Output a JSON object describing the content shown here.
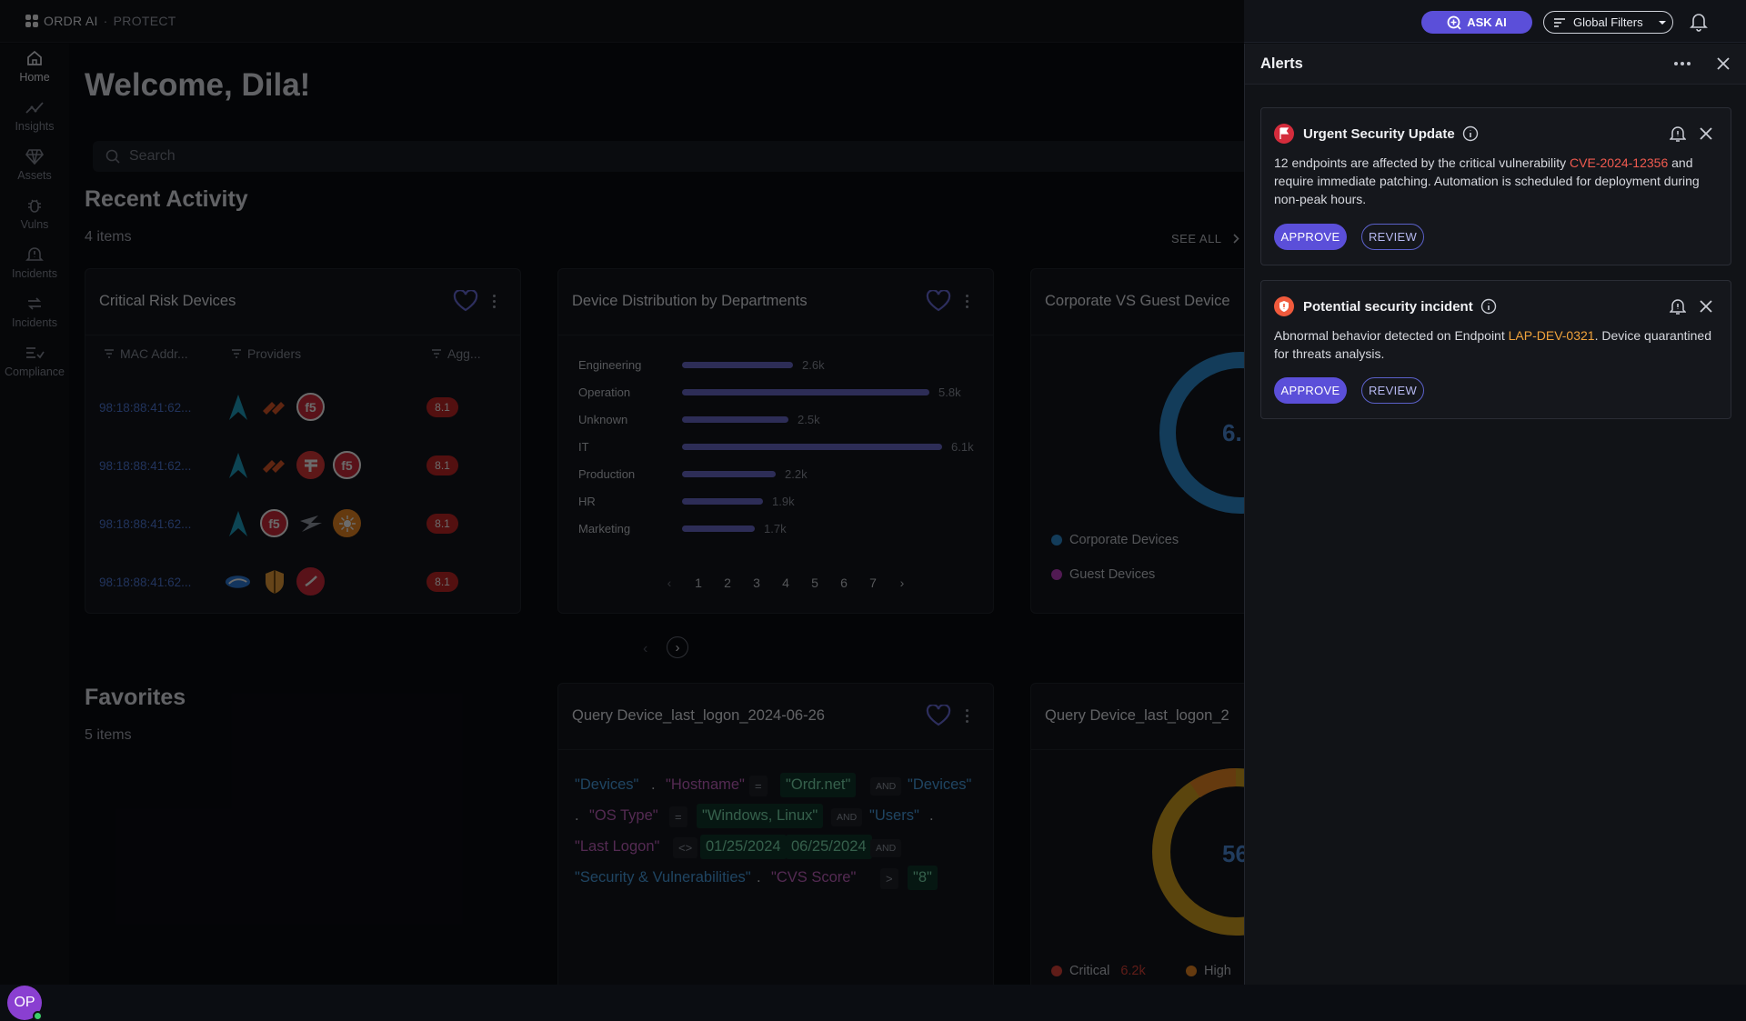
{
  "app": {
    "brand": "ORDR AI",
    "product": "PROTECT"
  },
  "topbar": {
    "ask_ai_label": "ASK AI",
    "global_filters_label": "Global Filters"
  },
  "sidebar": {
    "items": [
      {
        "label": "Home",
        "icon": "home-icon",
        "active": true
      },
      {
        "label": "Insights",
        "icon": "insights-icon"
      },
      {
        "label": "Assets",
        "icon": "diamond-icon"
      },
      {
        "label": "Vulns",
        "icon": "bug-icon"
      },
      {
        "label": "Incidents",
        "icon": "bell-icon"
      },
      {
        "label": "Incidents",
        "icon": "repeat-icon"
      },
      {
        "label": "Compliance",
        "icon": "checklist-icon"
      }
    ],
    "avatar_initials": "OP"
  },
  "main": {
    "welcome": "Welcome, Dila!",
    "search_placeholder": "Search",
    "recent": {
      "title": "Recent Activity",
      "count": "4 items",
      "see_all": "SEE ALL"
    },
    "favorites": {
      "title": "Favorites",
      "count": "5 items"
    }
  },
  "critical_card": {
    "title": "Critical Risk Devices",
    "headers": [
      "MAC Addr...",
      "Providers",
      "Agg..."
    ],
    "rows": [
      {
        "mac": "98:18:88:41:62...",
        "score": "8.1",
        "providers": [
          "sonarqube",
          "palo-alto",
          "f5"
        ]
      },
      {
        "mac": "98:18:88:41:62...",
        "score": "8.1",
        "providers": [
          "sonarqube",
          "palo-alto",
          "fortinet",
          "f5"
        ]
      },
      {
        "mac": "98:18:88:41:62...",
        "score": "8.1",
        "providers": [
          "sonarqube",
          "f5",
          "wiz",
          "sun"
        ]
      },
      {
        "mac": "98:18:88:41:62...",
        "score": "8.1",
        "providers": [
          "crowdstrike",
          "shield",
          "trend-micro"
        ]
      }
    ]
  },
  "dept_card": {
    "title": "Device Distribution by Departments",
    "pages": [
      "1",
      "2",
      "3",
      "4",
      "5",
      "6",
      "7"
    ]
  },
  "chart_data": {
    "type": "bar",
    "orientation": "horizontal",
    "categories": [
      "Engineering",
      "Operation",
      "Unknown",
      "IT",
      "Production",
      "HR",
      "Marketing"
    ],
    "values": [
      2.6,
      5.8,
      2.5,
      6.1,
      2.2,
      1.9,
      1.7
    ],
    "value_labels": [
      "2.6k",
      "5.8k",
      "2.5k",
      "6.1k",
      "2.2k",
      "1.9k",
      "1.7k"
    ],
    "color": "#6d6ccf"
  },
  "corp_card": {
    "title": "Corporate VS Guest Device",
    "center_value": "6.",
    "legend": [
      {
        "label": "Corporate Devices",
        "color": "#2f8fd6"
      },
      {
        "label": "Guest Devices",
        "color": "#c13fc7"
      }
    ]
  },
  "query_card1": {
    "title": "Query Device_last_logon_2024-06-26",
    "tokens": {
      "t1": "\"Devices\"",
      "t2": ".",
      "t3": "\"Hostname\"",
      "t4": "=",
      "t5": "\"Ordr.net\"",
      "t6": "AND",
      "t7": "\"Devices\"",
      "t8": ".",
      "t9": "\"OS Type\"",
      "t10": "=",
      "t11": "\"Windows, Linux\"",
      "t12": "AND",
      "t13": "\"Users\"",
      "t14": ".",
      "t15": "\"Last Logon\"",
      "t16": "<>",
      "t17": "01/25/2024",
      "t18": "06/25/2024",
      "t19": "AND",
      "t20": "\"Security & Vulnerabilities\"",
      "t21": ".",
      "t22": "\"CVS Score\"",
      "t23": ">",
      "t24": "\"8\""
    }
  },
  "query_card2": {
    "title": "Query Device_last_logon_2",
    "center_value": "56",
    "legend": [
      {
        "label": "Critical",
        "value": "6.2k",
        "color": "#e2443a"
      },
      {
        "label": "High",
        "color": "#f08a24"
      }
    ]
  },
  "alerts": {
    "title": "Alerts",
    "items": [
      {
        "title": "Urgent Security Update",
        "body_pre": "12 endpoints are affected by the critical vulnerability ",
        "highlight": "CVE-2024-12356",
        "body_post": " and require immediate patching. Automation is scheduled for deployment during non-peak hours.",
        "approve": "APPROVE",
        "review": "REVIEW",
        "icon": "flag-icon"
      },
      {
        "title": "Potential security incident",
        "body_pre": "Abnormal behavior detected on Endpoint ",
        "highlight": "LAP-DEV-0321",
        "body_post": ". Device quarantined for threats analysis.",
        "approve": "APPROVE",
        "review": "REVIEW",
        "icon": "alert-shield-icon"
      }
    ]
  }
}
